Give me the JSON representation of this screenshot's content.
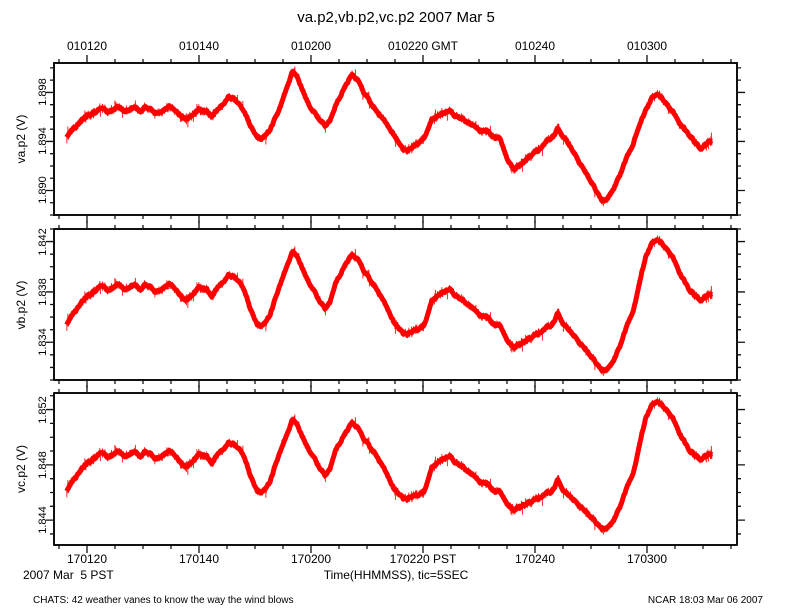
{
  "title": "va.p2,vb.p2,vc.p2 2007 Mar 5",
  "captions": {
    "bottom_left": "2007 Mar  5 PST",
    "bottom_center": "Time(HHMMSS), tic=5SEC"
  },
  "footer": {
    "left": "CHATS: 42 weather vanes to know the way the wind blows",
    "right": "NCAR 18:03 Mar 06 2007"
  },
  "axes": {
    "x": {
      "tick_seconds": [
        80,
        100,
        120,
        140,
        160,
        180
      ],
      "top_labels": [
        "010120",
        "010140",
        "010200",
        "010220 GMT",
        "010240",
        "010300"
      ],
      "bottom_labels": [
        "170120",
        "170140",
        "170200",
        "170220 PST",
        "170240",
        "170300"
      ],
      "minor_step_seconds": 5,
      "window_seconds": [
        74.1,
        196.1
      ]
    },
    "y_panels": [
      {
        "label": "va.p2 (V)",
        "tick_labels": [
          "1.890",
          "1.894",
          "1.898"
        ],
        "tick_values": [
          1.89,
          1.894,
          1.898
        ],
        "ylim": [
          1.888,
          1.9004
        ],
        "minor_step": 0.001
      },
      {
        "label": "vb.p2 (V)",
        "tick_labels": [
          "1.834",
          "1.838",
          "1.842"
        ],
        "tick_values": [
          1.834,
          1.838,
          1.842
        ],
        "ylim": [
          1.831,
          1.843
        ],
        "minor_step": 0.001
      },
      {
        "label": "vc.p2 (V)",
        "tick_labels": [
          "1.844",
          "1.848",
          "1.852"
        ],
        "tick_values": [
          1.844,
          1.848,
          1.852
        ],
        "ylim": [
          1.8422,
          1.8532
        ],
        "minor_step": 0.001
      }
    ]
  },
  "chart_data": {
    "type": "line",
    "title": "va.p2,vb.p2,vc.p2 2007 Mar 5",
    "xlabel": "Time(HHMMSS), tic=5SEC",
    "x_unit": "seconds after 010000 GMT (PST labels = GMT - 8h)",
    "x_range_gmt": [
      "010116",
      "010312"
    ],
    "color": "#ff0000",
    "grid": false,
    "shape_points": [
      [
        76.4,
        0.5
      ],
      [
        77.9,
        0.58
      ],
      [
        79.6,
        0.64
      ],
      [
        82.3,
        0.72
      ],
      [
        84.1,
        0.7
      ],
      [
        85.4,
        0.74
      ],
      [
        86.8,
        0.7
      ],
      [
        88.2,
        0.73
      ],
      [
        89.5,
        0.7
      ],
      [
        90.7,
        0.74
      ],
      [
        92.1,
        0.69
      ],
      [
        93.6,
        0.72
      ],
      [
        94.8,
        0.73
      ],
      [
        96.3,
        0.68
      ],
      [
        97.5,
        0.64
      ],
      [
        98.8,
        0.67
      ],
      [
        100.2,
        0.72
      ],
      [
        101.4,
        0.71
      ],
      [
        102.3,
        0.66
      ],
      [
        103.8,
        0.74
      ],
      [
        105.2,
        0.82
      ],
      [
        106.4,
        0.8
      ],
      [
        107.9,
        0.71
      ],
      [
        109.1,
        0.6
      ],
      [
        110.4,
        0.5
      ],
      [
        111.4,
        0.49
      ],
      [
        112.7,
        0.55
      ],
      [
        114.1,
        0.7
      ],
      [
        115.4,
        0.87
      ],
      [
        116.6,
        1.0
      ],
      [
        117.5,
        0.98
      ],
      [
        118.9,
        0.84
      ],
      [
        120.2,
        0.72
      ],
      [
        121.3,
        0.64
      ],
      [
        122.5,
        0.6
      ],
      [
        123.4,
        0.63
      ],
      [
        124.8,
        0.78
      ],
      [
        126.1,
        0.91
      ],
      [
        127.3,
        1.0
      ],
      [
        128.4,
        0.95
      ],
      [
        129.6,
        0.84
      ],
      [
        130.9,
        0.75
      ],
      [
        132.3,
        0.68
      ],
      [
        133.8,
        0.58
      ],
      [
        135.0,
        0.49
      ],
      [
        136.4,
        0.4
      ],
      [
        137.7,
        0.39
      ],
      [
        139.1,
        0.45
      ],
      [
        140.4,
        0.52
      ],
      [
        141.6,
        0.64
      ],
      [
        143.0,
        0.68
      ],
      [
        144.8,
        0.7
      ],
      [
        146.6,
        0.65
      ],
      [
        148.4,
        0.61
      ],
      [
        150.2,
        0.56
      ],
      [
        152.0,
        0.52
      ],
      [
        153.8,
        0.48
      ],
      [
        155.2,
        0.31
      ],
      [
        156.4,
        0.24
      ],
      [
        157.7,
        0.28
      ],
      [
        159.1,
        0.35
      ],
      [
        160.9,
        0.4
      ],
      [
        162.7,
        0.49
      ],
      [
        164.1,
        0.56
      ],
      [
        165.4,
        0.49
      ],
      [
        166.6,
        0.4
      ],
      [
        168.0,
        0.29
      ],
      [
        169.5,
        0.18
      ],
      [
        170.7,
        0.09
      ],
      [
        172.0,
        0.0
      ],
      [
        173.0,
        0.02
      ],
      [
        174.3,
        0.12
      ],
      [
        175.5,
        0.24
      ],
      [
        177.0,
        0.4
      ],
      [
        178.4,
        0.56
      ],
      [
        179.8,
        0.72
      ],
      [
        180.9,
        0.82
      ],
      [
        182.0,
        0.83
      ],
      [
        183.2,
        0.77
      ],
      [
        184.6,
        0.7
      ],
      [
        185.9,
        0.61
      ],
      [
        187.3,
        0.52
      ],
      [
        188.6,
        0.45
      ],
      [
        189.8,
        0.41
      ],
      [
        190.9,
        0.44
      ],
      [
        191.6,
        0.47
      ]
    ],
    "series": [
      {
        "name": "va.p2",
        "value_anchors": [
          [
            0,
            1.8892
          ],
          [
            1,
            1.8995
          ]
        ],
        "tail_boost_v": 0,
        "tail_boost_t": [
          173,
          181
        ]
      },
      {
        "name": "vb.p2",
        "value_anchors": [
          [
            0,
            1.8318
          ],
          [
            0.5,
            1.8354
          ],
          [
            0.72,
            1.8384
          ],
          [
            0.93,
            1.8404
          ],
          [
            1,
            1.841
          ]
        ],
        "tail_boost_v": 0.0026,
        "tail_boost_t": [
          173,
          181
        ]
      },
      {
        "name": "vc.p2",
        "value_anchors": [
          [
            0,
            1.8434
          ],
          [
            0.5,
            1.8461
          ],
          [
            0.72,
            1.8488
          ],
          [
            0.93,
            1.8505
          ],
          [
            1,
            1.8511
          ]
        ],
        "tail_boost_v": 0.0028,
        "tail_boost_t": [
          173,
          181
        ]
      }
    ]
  }
}
